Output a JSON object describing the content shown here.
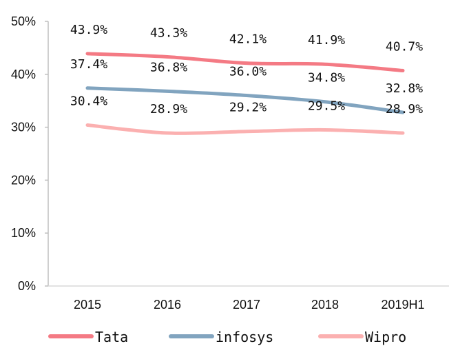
{
  "chart_data": {
    "type": "line",
    "title": "",
    "xlabel": "",
    "ylabel": "",
    "categories": [
      "2015",
      "2016",
      "2017",
      "2018",
      "2019H1"
    ],
    "ylim": [
      0,
      50
    ],
    "yticks": [
      "0%",
      "10%",
      "20%",
      "30%",
      "40%",
      "50%"
    ],
    "grid": false,
    "legend_position": "bottom",
    "series": [
      {
        "name": "Tata",
        "color": "#f47a84",
        "values": [
          43.9,
          43.3,
          42.1,
          41.9,
          40.7
        ],
        "labels": [
          "43.9%",
          "43.3%",
          "42.1%",
          "41.9%",
          "40.7%"
        ]
      },
      {
        "name": "infosys",
        "color": "#81a4bf",
        "values": [
          37.4,
          36.8,
          36.0,
          34.8,
          32.8
        ],
        "labels": [
          "37.4%",
          "36.8%",
          "36.0%",
          "34.8%",
          "32.8%"
        ]
      },
      {
        "name": "Wipro",
        "color": "#fbb0b0",
        "values": [
          30.4,
          28.9,
          29.2,
          29.5,
          28.9
        ],
        "labels": [
          "30.4%",
          "28.9%",
          "29.2%",
          "29.5%",
          "28.9%"
        ]
      }
    ]
  }
}
